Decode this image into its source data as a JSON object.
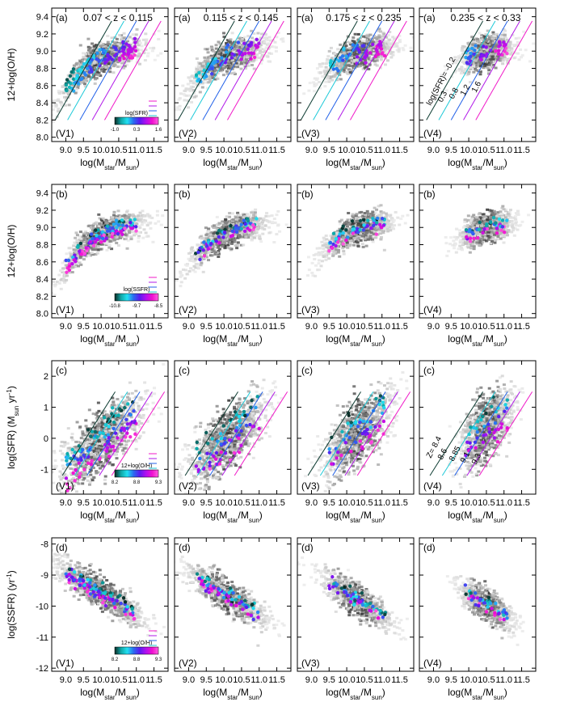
{
  "chart_data": {
    "type": "scatter",
    "description_panels": "4x4 grid: hexbin scatter colored by a third quantity over greyscale density",
    "columns": [
      {
        "range": "0.07 < z < 0.115",
        "sample": "(V1)"
      },
      {
        "range": "0.115 < z < 0.145",
        "sample": "(V2)"
      },
      {
        "range": "0.175 < z < 0.235",
        "sample": "(V3)"
      },
      {
        "range": "0.235 < z < 0.33",
        "sample": "(V4)"
      }
    ],
    "x_axis": {
      "label_main": "log(M",
      "label_sub1": "star",
      "label_mid": "/M",
      "label_sub2": "sun",
      "label_end": ")",
      "xlim": [
        8.6,
        11.9
      ],
      "ticks": [
        9.0,
        9.5,
        10.0,
        10.5,
        11.0,
        11.5
      ],
      "tick_labels": [
        "9.0",
        "9.5",
        "10.0",
        "10.5",
        "11.0",
        "11.5"
      ]
    },
    "rows": [
      {
        "tag": "(a)",
        "colorbar_col": 0,
        "ylabel": "12+log(O/H)",
        "ylim": [
          7.95,
          9.5
        ],
        "yticks": [
          8.0,
          8.2,
          8.4,
          8.6,
          8.8,
          9.0,
          9.2,
          9.4
        ],
        "ytick_labels": [
          "8.0",
          "8.2",
          "8.4",
          "8.6",
          "8.8",
          "9.0",
          "9.2",
          "9.4"
        ],
        "colorbar": {
          "label": "log(SFR)",
          "tick_labels": [
            "-1.0",
            "0.3",
            "1.6"
          ]
        },
        "show_range": true,
        "contour_labels": [
          "log(SFR)= -0.2",
          "0.3",
          "0.8",
          "1.2",
          "1.6"
        ],
        "trend": {
          "type": "mzr"
        }
      },
      {
        "tag": "(b)",
        "colorbar_col": 0,
        "ylabel": "12+log(O/H)",
        "ylim": [
          7.95,
          9.5
        ],
        "yticks": [
          8.0,
          8.2,
          8.4,
          8.6,
          8.8,
          9.0,
          9.2,
          9.4
        ],
        "ytick_labels": [
          "8.0",
          "8.2",
          "8.4",
          "8.6",
          "8.8",
          "9.0",
          "9.2",
          "9.4"
        ],
        "colorbar": {
          "label": "log(SSFR)",
          "tick_labels": [
            "-10.8",
            "-9.7",
            "-8.5"
          ]
        },
        "show_range": false,
        "contour_labels": [],
        "trend": {
          "type": "mzr_b"
        }
      },
      {
        "tag": "(c)",
        "colorbar_col": 0,
        "ylabel_main": "log(SFR) (M",
        "ylabel_sub": "sun",
        "ylabel_mid": " yr",
        "ylabel_sup": "-1",
        "ylabel_end": ")",
        "ylim": [
          -1.8,
          2.5
        ],
        "yticks": [
          -1,
          0,
          1,
          2
        ],
        "ytick_labels": [
          "-1",
          "0",
          "1",
          "2"
        ],
        "colorbar": {
          "label": "12+log(O/H)",
          "tick_labels": [
            "8.2",
            "8.8",
            "9.3"
          ]
        },
        "show_range": false,
        "contour_labels": [
          "Z= 8.4",
          "8.6",
          "8.85",
          "9.1",
          "9.3"
        ],
        "trend": {
          "type": "sfms"
        }
      },
      {
        "tag": "(d)",
        "colorbar_col": 0,
        "ylabel_main": "log(SSFR) (yr",
        "ylabel_sup": "-1",
        "ylabel_end": ")",
        "ylim": [
          -12.1,
          -7.8
        ],
        "yticks": [
          -12,
          -11,
          -10,
          -9,
          -8
        ],
        "ytick_labels": [
          "-12",
          "-11",
          "-10",
          "-9",
          "-8"
        ],
        "colorbar": {
          "label": "12+log(O/H)",
          "tick_labels": [
            "8.2",
            "8.8",
            "9.3"
          ]
        },
        "show_range": false,
        "contour_labels": [],
        "trend": {
          "type": "ssfr"
        }
      }
    ],
    "colormap": [
      "#0b2a24",
      "#0fa6a6",
      "#22e0f0",
      "#2a6cf0",
      "#5a1cf0",
      "#b010f0",
      "#f010d0",
      "#ff5fe0"
    ],
    "line_colors": [
      "#0b3a30",
      "#1cc9d8",
      "#2060e8",
      "#b018e8",
      "#f018c8"
    ]
  }
}
